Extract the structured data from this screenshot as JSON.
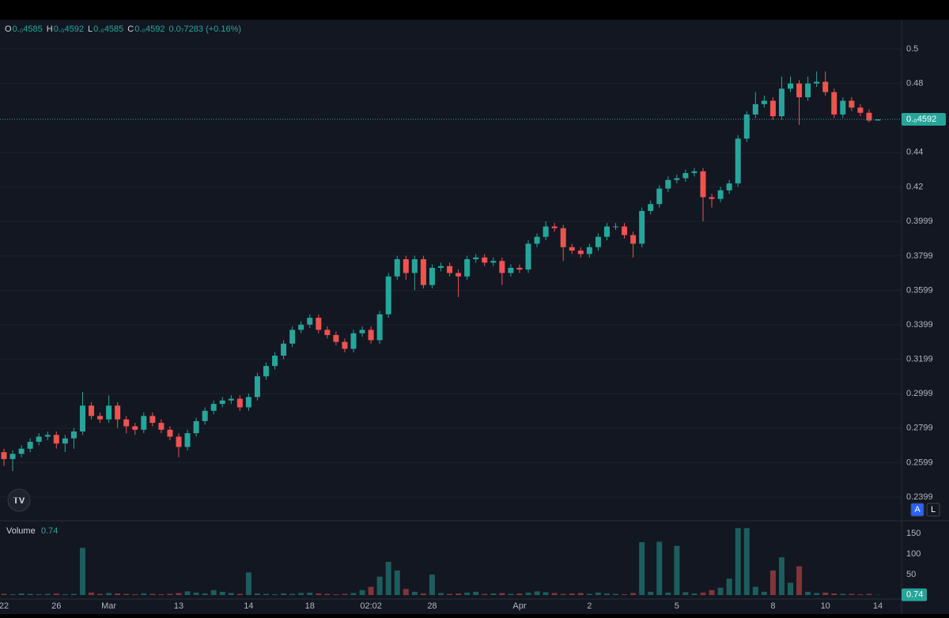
{
  "chart_data": {
    "type": "candlestick",
    "legend": {
      "items": [
        {
          "key": "O",
          "value": "0.₀4585"
        },
        {
          "key": "H",
          "value": "0.₀4592"
        },
        {
          "key": "L",
          "value": "0.₀4585"
        },
        {
          "key": "C",
          "value": "0.₀4592"
        }
      ],
      "change": "0.0₇7283 (+0.16%)"
    },
    "categories": [
      "22",
      null,
      null,
      null,
      null,
      null,
      "26",
      null,
      null,
      null,
      null,
      null,
      "Mar",
      null,
      null,
      null,
      null,
      null,
      null,
      null,
      "13",
      null,
      null,
      null,
      null,
      null,
      null,
      null,
      "14",
      null,
      null,
      null,
      null,
      null,
      null,
      "18",
      null,
      null,
      null,
      null,
      null,
      null,
      "02:02",
      null,
      null,
      null,
      null,
      null,
      null,
      "28",
      null,
      null,
      null,
      null,
      null,
      null,
      null,
      null,
      null,
      "Apr",
      null,
      null,
      null,
      null,
      null,
      null,
      null,
      "2",
      null,
      null,
      null,
      null,
      null,
      null,
      null,
      null,
      null,
      "5",
      null,
      null,
      null,
      null,
      null,
      null,
      null,
      null,
      null,
      null,
      "8",
      null,
      null,
      null,
      null,
      null,
      "10",
      null,
      null,
      null,
      null,
      null,
      "14"
    ],
    "open": [
      0.266,
      0.262,
      0.265,
      0.268,
      0.272,
      0.275,
      0.276,
      0.271,
      0.274,
      0.278,
      0.293,
      0.287,
      0.285,
      0.293,
      0.285,
      0.281,
      0.279,
      0.287,
      0.283,
      0.279,
      0.275,
      0.269,
      0.277,
      0.284,
      0.29,
      0.294,
      0.296,
      0.297,
      0.292,
      0.298,
      0.31,
      0.316,
      0.322,
      0.329,
      0.337,
      0.34,
      0.344,
      0.337,
      0.334,
      0.33,
      0.326,
      0.335,
      0.337,
      0.331,
      0.346,
      0.368,
      0.378,
      0.37,
      0.378,
      0.363,
      0.373,
      0.374,
      0.37,
      0.368,
      0.378,
      0.379,
      0.376,
      0.377,
      0.37,
      0.373,
      0.372,
      0.387,
      0.391,
      0.397,
      0.396,
      0.385,
      0.383,
      0.381,
      0.385,
      0.391,
      0.397,
      0.397,
      0.392,
      0.387,
      0.406,
      0.41,
      0.419,
      0.424,
      0.425,
      0.428,
      0.429,
      0.414,
      0.413,
      0.418,
      0.422,
      0.448,
      0.462,
      0.468,
      0.47,
      0.461,
      0.477,
      0.48,
      0.472,
      0.48,
      0.481,
      0.475,
      0.462,
      0.47,
      0.466,
      0.463,
      0.4585
    ],
    "high": [
      0.268,
      0.267,
      0.27,
      0.274,
      0.277,
      0.278,
      0.278,
      0.276,
      0.28,
      0.301,
      0.295,
      0.289,
      0.299,
      0.295,
      0.287,
      0.283,
      0.289,
      0.289,
      0.285,
      0.281,
      0.277,
      0.279,
      0.286,
      0.292,
      0.296,
      0.298,
      0.299,
      0.299,
      0.3,
      0.312,
      0.318,
      0.324,
      0.331,
      0.339,
      0.342,
      0.346,
      0.346,
      0.339,
      0.336,
      0.332,
      0.337,
      0.339,
      0.339,
      0.348,
      0.37,
      0.38,
      0.38,
      0.38,
      0.38,
      0.375,
      0.376,
      0.376,
      0.372,
      0.38,
      0.381,
      0.381,
      0.379,
      0.379,
      0.375,
      0.375,
      0.389,
      0.393,
      0.4,
      0.399,
      0.398,
      0.387,
      0.385,
      0.387,
      0.393,
      0.399,
      0.399,
      0.399,
      0.394,
      0.408,
      0.412,
      0.421,
      0.426,
      0.427,
      0.43,
      0.431,
      0.431,
      0.416,
      0.42,
      0.424,
      0.45,
      0.464,
      0.475,
      0.473,
      0.472,
      0.484,
      0.484,
      0.482,
      0.484,
      0.487,
      0.487,
      0.477,
      0.472,
      0.472,
      0.468,
      0.465,
      0.4592
    ],
    "low": [
      0.258,
      0.255,
      0.263,
      0.266,
      0.27,
      0.273,
      0.268,
      0.266,
      0.268,
      0.276,
      0.285,
      0.283,
      0.283,
      0.28,
      0.277,
      0.276,
      0.277,
      0.281,
      0.277,
      0.273,
      0.263,
      0.267,
      0.275,
      0.282,
      0.288,
      0.292,
      0.294,
      0.29,
      0.29,
      0.296,
      0.308,
      0.314,
      0.32,
      0.327,
      0.335,
      0.338,
      0.335,
      0.332,
      0.328,
      0.324,
      0.324,
      0.333,
      0.329,
      0.329,
      0.344,
      0.366,
      0.366,
      0.36,
      0.361,
      0.361,
      0.371,
      0.368,
      0.356,
      0.366,
      0.376,
      0.374,
      0.374,
      0.363,
      0.368,
      0.37,
      0.37,
      0.385,
      0.389,
      0.394,
      0.377,
      0.381,
      0.379,
      0.379,
      0.383,
      0.389,
      0.395,
      0.39,
      0.379,
      0.385,
      0.404,
      0.408,
      0.417,
      0.422,
      0.423,
      0.426,
      0.4,
      0.408,
      0.411,
      0.416,
      0.42,
      0.446,
      0.46,
      0.466,
      0.459,
      0.459,
      0.475,
      0.456,
      0.47,
      0.478,
      0.473,
      0.46,
      0.46,
      0.464,
      0.461,
      0.4575,
      0.4585
    ],
    "close": [
      0.262,
      0.265,
      0.268,
      0.272,
      0.275,
      0.276,
      0.271,
      0.274,
      0.278,
      0.293,
      0.287,
      0.285,
      0.293,
      0.285,
      0.281,
      0.279,
      0.287,
      0.283,
      0.279,
      0.275,
      0.269,
      0.277,
      0.284,
      0.29,
      0.294,
      0.296,
      0.297,
      0.292,
      0.298,
      0.31,
      0.316,
      0.322,
      0.329,
      0.337,
      0.34,
      0.344,
      0.337,
      0.334,
      0.33,
      0.326,
      0.335,
      0.337,
      0.331,
      0.346,
      0.368,
      0.378,
      0.37,
      0.378,
      0.363,
      0.373,
      0.374,
      0.37,
      0.368,
      0.378,
      0.379,
      0.376,
      0.377,
      0.37,
      0.373,
      0.372,
      0.387,
      0.391,
      0.397,
      0.396,
      0.385,
      0.383,
      0.381,
      0.385,
      0.391,
      0.397,
      0.397,
      0.392,
      0.387,
      0.406,
      0.41,
      0.419,
      0.424,
      0.425,
      0.428,
      0.429,
      0.414,
      0.413,
      0.418,
      0.422,
      0.448,
      0.462,
      0.468,
      0.47,
      0.461,
      0.477,
      0.48,
      0.472,
      0.48,
      0.481,
      0.475,
      0.462,
      0.47,
      0.466,
      0.463,
      0.4585,
      0.4592
    ],
    "last_price_label": "0.₀4592",
    "ylim": [
      0.2266,
      0.517
    ],
    "yticks": [
      0.5,
      0.48,
      0.44,
      0.42,
      0.3999,
      0.3799,
      0.3599,
      0.3399,
      0.3199,
      0.2999,
      0.2799,
      0.2599,
      0.2399
    ],
    "grid": true,
    "up_color": "#26a69a",
    "down_color": "#ef5350",
    "volume": {
      "label": "Volume",
      "values": [
        3,
        2,
        4,
        3,
        2,
        3,
        4,
        2,
        3,
        115,
        6,
        3,
        5,
        4,
        3,
        2,
        4,
        3,
        2,
        3,
        5,
        9,
        6,
        4,
        12,
        8,
        5,
        3,
        55,
        4,
        3,
        2,
        4,
        3,
        5,
        6,
        4,
        3,
        2,
        3,
        5,
        12,
        20,
        45,
        81,
        60,
        15,
        8,
        4,
        50,
        5,
        3,
        4,
        6,
        8,
        3,
        4,
        5,
        3,
        4,
        6,
        9,
        7,
        5,
        3,
        4,
        5,
        3,
        6,
        4,
        3,
        2,
        5,
        129,
        8,
        130,
        6,
        120,
        7,
        4,
        6,
        12,
        18,
        40,
        163,
        163,
        20,
        8,
        60,
        92,
        30,
        70,
        8,
        5,
        6,
        4,
        3,
        3,
        2,
        3,
        0.74
      ],
      "ylim": [
        0,
        179
      ],
      "yticks": [
        150,
        100,
        50
      ]
    },
    "buttons": [
      "A",
      "L"
    ]
  }
}
